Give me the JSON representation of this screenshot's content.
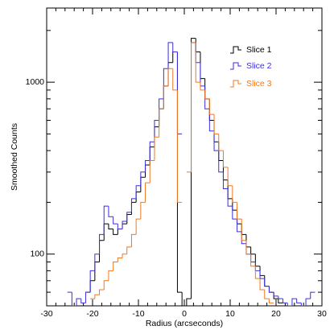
{
  "chart_data": {
    "type": "step",
    "xlabel": "Radius (arcseconds)",
    "ylabel": "Smoothed Counts",
    "x": [
      -25,
      -24,
      -23,
      -22,
      -21,
      -20,
      -19,
      -18,
      -17,
      -16,
      -15,
      -14,
      -13,
      -12,
      -11,
      -10,
      -9,
      -8,
      -7,
      -6,
      -5,
      -4,
      -3,
      -2,
      -1,
      0,
      1,
      2,
      3,
      4,
      5,
      6,
      7,
      8,
      9,
      10,
      11,
      12,
      13,
      14,
      15,
      16,
      17,
      18,
      19,
      20,
      21,
      22,
      23,
      24,
      25,
      26,
      27,
      28,
      29
    ],
    "series": [
      {
        "name": "Slice 1",
        "color": "#000000",
        "values": [
          null,
          null,
          null,
          null,
          60,
          70,
          90,
          120,
          150,
          140,
          130,
          140,
          150,
          170,
          200,
          230,
          280,
          330,
          420,
          550,
          700,
          950,
          1300,
          1500,
          60,
          45,
          55,
          1800,
          1500,
          1050,
          800,
          600,
          450,
          350,
          270,
          210,
          180,
          150,
          130,
          110,
          100,
          85,
          75,
          65,
          60,
          55,
          52,
          null,
          null,
          null,
          null,
          null,
          null,
          null,
          null
        ]
      },
      {
        "name": "Slice 2",
        "color": "#3a2ee0",
        "values": [
          60,
          50,
          55,
          52,
          60,
          80,
          100,
          130,
          190,
          165,
          150,
          140,
          155,
          175,
          210,
          250,
          300,
          350,
          450,
          600,
          800,
          1200,
          1700,
          1500,
          500,
          null,
          null,
          1700,
          1300,
          950,
          700,
          520,
          400,
          300,
          240,
          190,
          160,
          135,
          115,
          100,
          90,
          80,
          72,
          65,
          60,
          57,
          55,
          52,
          50,
          55,
          52,
          50,
          55,
          60,
          null
        ]
      },
      {
        "name": "Slice 3",
        "color": "#f07820",
        "values": [
          null,
          null,
          null,
          null,
          null,
          55,
          58,
          62,
          70,
          80,
          90,
          95,
          100,
          110,
          130,
          160,
          200,
          260,
          350,
          480,
          700,
          950,
          1200,
          900,
          200,
          null,
          300,
          1700,
          1000,
          900,
          800,
          650,
          500,
          400,
          320,
          250,
          200,
          160,
          120,
          100,
          85,
          72,
          62,
          55,
          52,
          null,
          null,
          null,
          null,
          null,
          null,
          null,
          null,
          null,
          null
        ]
      }
    ],
    "xlim": [
      -30,
      30
    ],
    "xticks": [
      -30,
      -20,
      -10,
      0,
      10,
      20,
      30
    ],
    "xminorticks": [
      -28,
      -26,
      -24,
      -22,
      -18,
      -16,
      -14,
      -12,
      -8,
      -6,
      -4,
      -2,
      2,
      4,
      6,
      8,
      12,
      14,
      16,
      18,
      22,
      24,
      26,
      28
    ],
    "ylim": [
      50,
      2700
    ],
    "yticks": [
      100,
      1000
    ],
    "ylog": true,
    "yminorticks": [
      60,
      70,
      80,
      90,
      200,
      300,
      400,
      500,
      600,
      700,
      800,
      900,
      2000
    ],
    "legend": "top-right"
  }
}
